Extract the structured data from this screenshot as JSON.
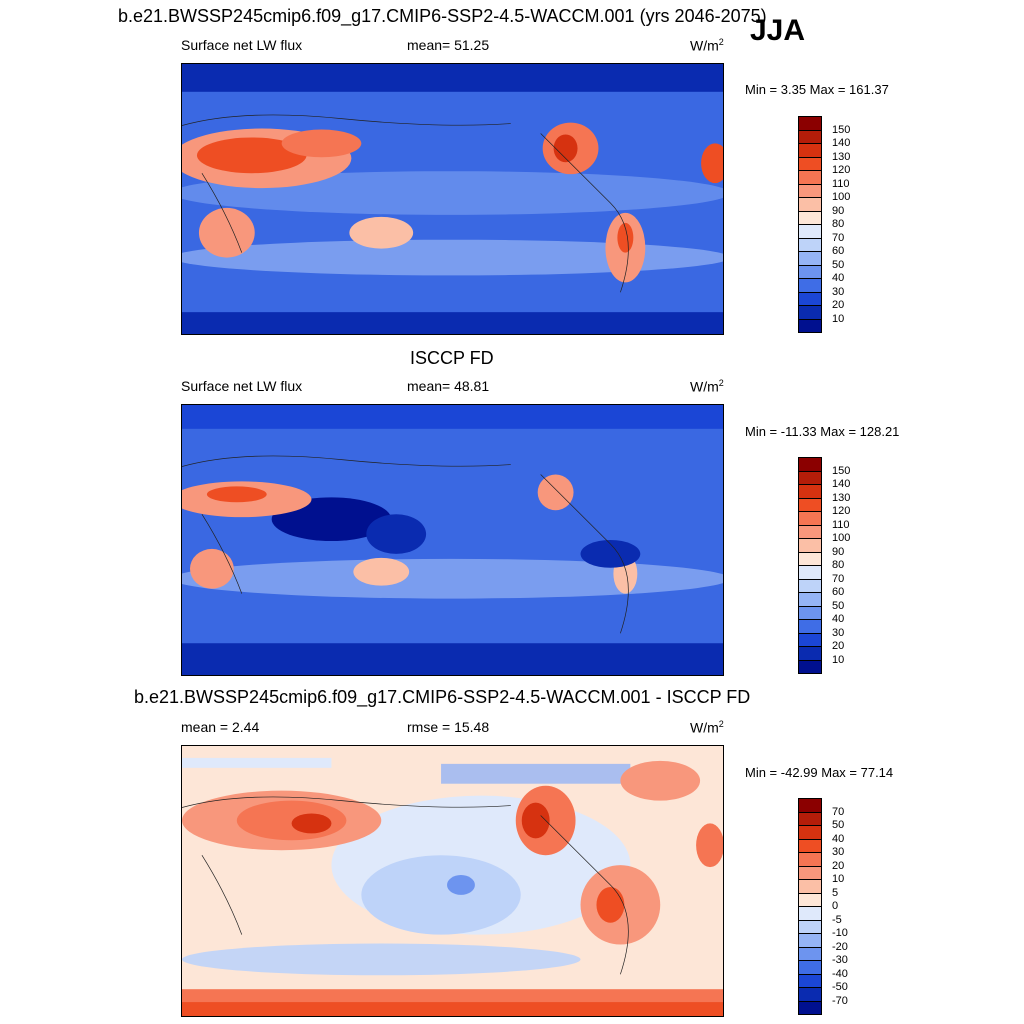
{
  "season": "JJA",
  "panels": [
    {
      "id": "model",
      "title": "b.e21.BWSSP245cmip6.f09_g17.CMIP6-SSP2-4.5-WACCM.001 (yrs 2046-2075)",
      "left_label": "Surface net LW flux",
      "center_label": "mean=  51.25",
      "units_base": "W/m",
      "units_exp": "2",
      "minmax": "Min =   3.35 Max = 161.37",
      "colorbar_labels": [
        "150",
        "140",
        "130",
        "120",
        "110",
        "100",
        "90",
        "80",
        "70",
        "60",
        "50",
        "40",
        "30",
        "20",
        "10"
      ],
      "colorbar_colors": [
        "#8b0000",
        "#b41d09",
        "#d63210",
        "#ee4e23",
        "#f57553",
        "#f8977c",
        "#fbbfa6",
        "#fde6d7",
        "#dfe9fb",
        "#bed3f9",
        "#95b4f5",
        "#6d94ef",
        "#3f6de6",
        "#1b46d6",
        "#0a2bb0",
        "#00108f"
      ]
    },
    {
      "id": "obs",
      "title": "ISCCP FD",
      "left_label": "Surface net LW flux",
      "center_label": "mean=  48.81",
      "units_base": "W/m",
      "units_exp": "2",
      "minmax": "Min = -11.33 Max = 128.21",
      "colorbar_labels": [
        "150",
        "140",
        "130",
        "120",
        "110",
        "100",
        "90",
        "80",
        "70",
        "60",
        "50",
        "40",
        "30",
        "20",
        "10"
      ],
      "colorbar_colors": [
        "#8b0000",
        "#b41d09",
        "#d63210",
        "#ee4e23",
        "#f57553",
        "#f8977c",
        "#fbbfa6",
        "#fde6d7",
        "#dfe9fb",
        "#bed3f9",
        "#95b4f5",
        "#6d94ef",
        "#3f6de6",
        "#1b46d6",
        "#0a2bb0",
        "#00108f"
      ]
    },
    {
      "id": "diff",
      "title": "b.e21.BWSSP245cmip6.f09_g17.CMIP6-SSP2-4.5-WACCM.001 - ISCCP FD",
      "left_label": "mean =   2.44",
      "center_label": "rmse =  15.48",
      "units_base": "W/m",
      "units_exp": "2",
      "minmax": "Min = -42.99 Max =  77.14",
      "colorbar_labels": [
        "70",
        "50",
        "40",
        "30",
        "20",
        "10",
        "5",
        "0",
        "-5",
        "-10",
        "-20",
        "-30",
        "-40",
        "-50",
        "-70"
      ],
      "colorbar_colors": [
        "#8b0000",
        "#b41d09",
        "#d63210",
        "#ee4e23",
        "#f57553",
        "#f8977c",
        "#fbbfa6",
        "#fde6d7",
        "#dfe9fb",
        "#bed3f9",
        "#95b4f5",
        "#6d94ef",
        "#3f6de6",
        "#1b46d6",
        "#0a2bb0",
        "#00108f"
      ]
    }
  ]
}
